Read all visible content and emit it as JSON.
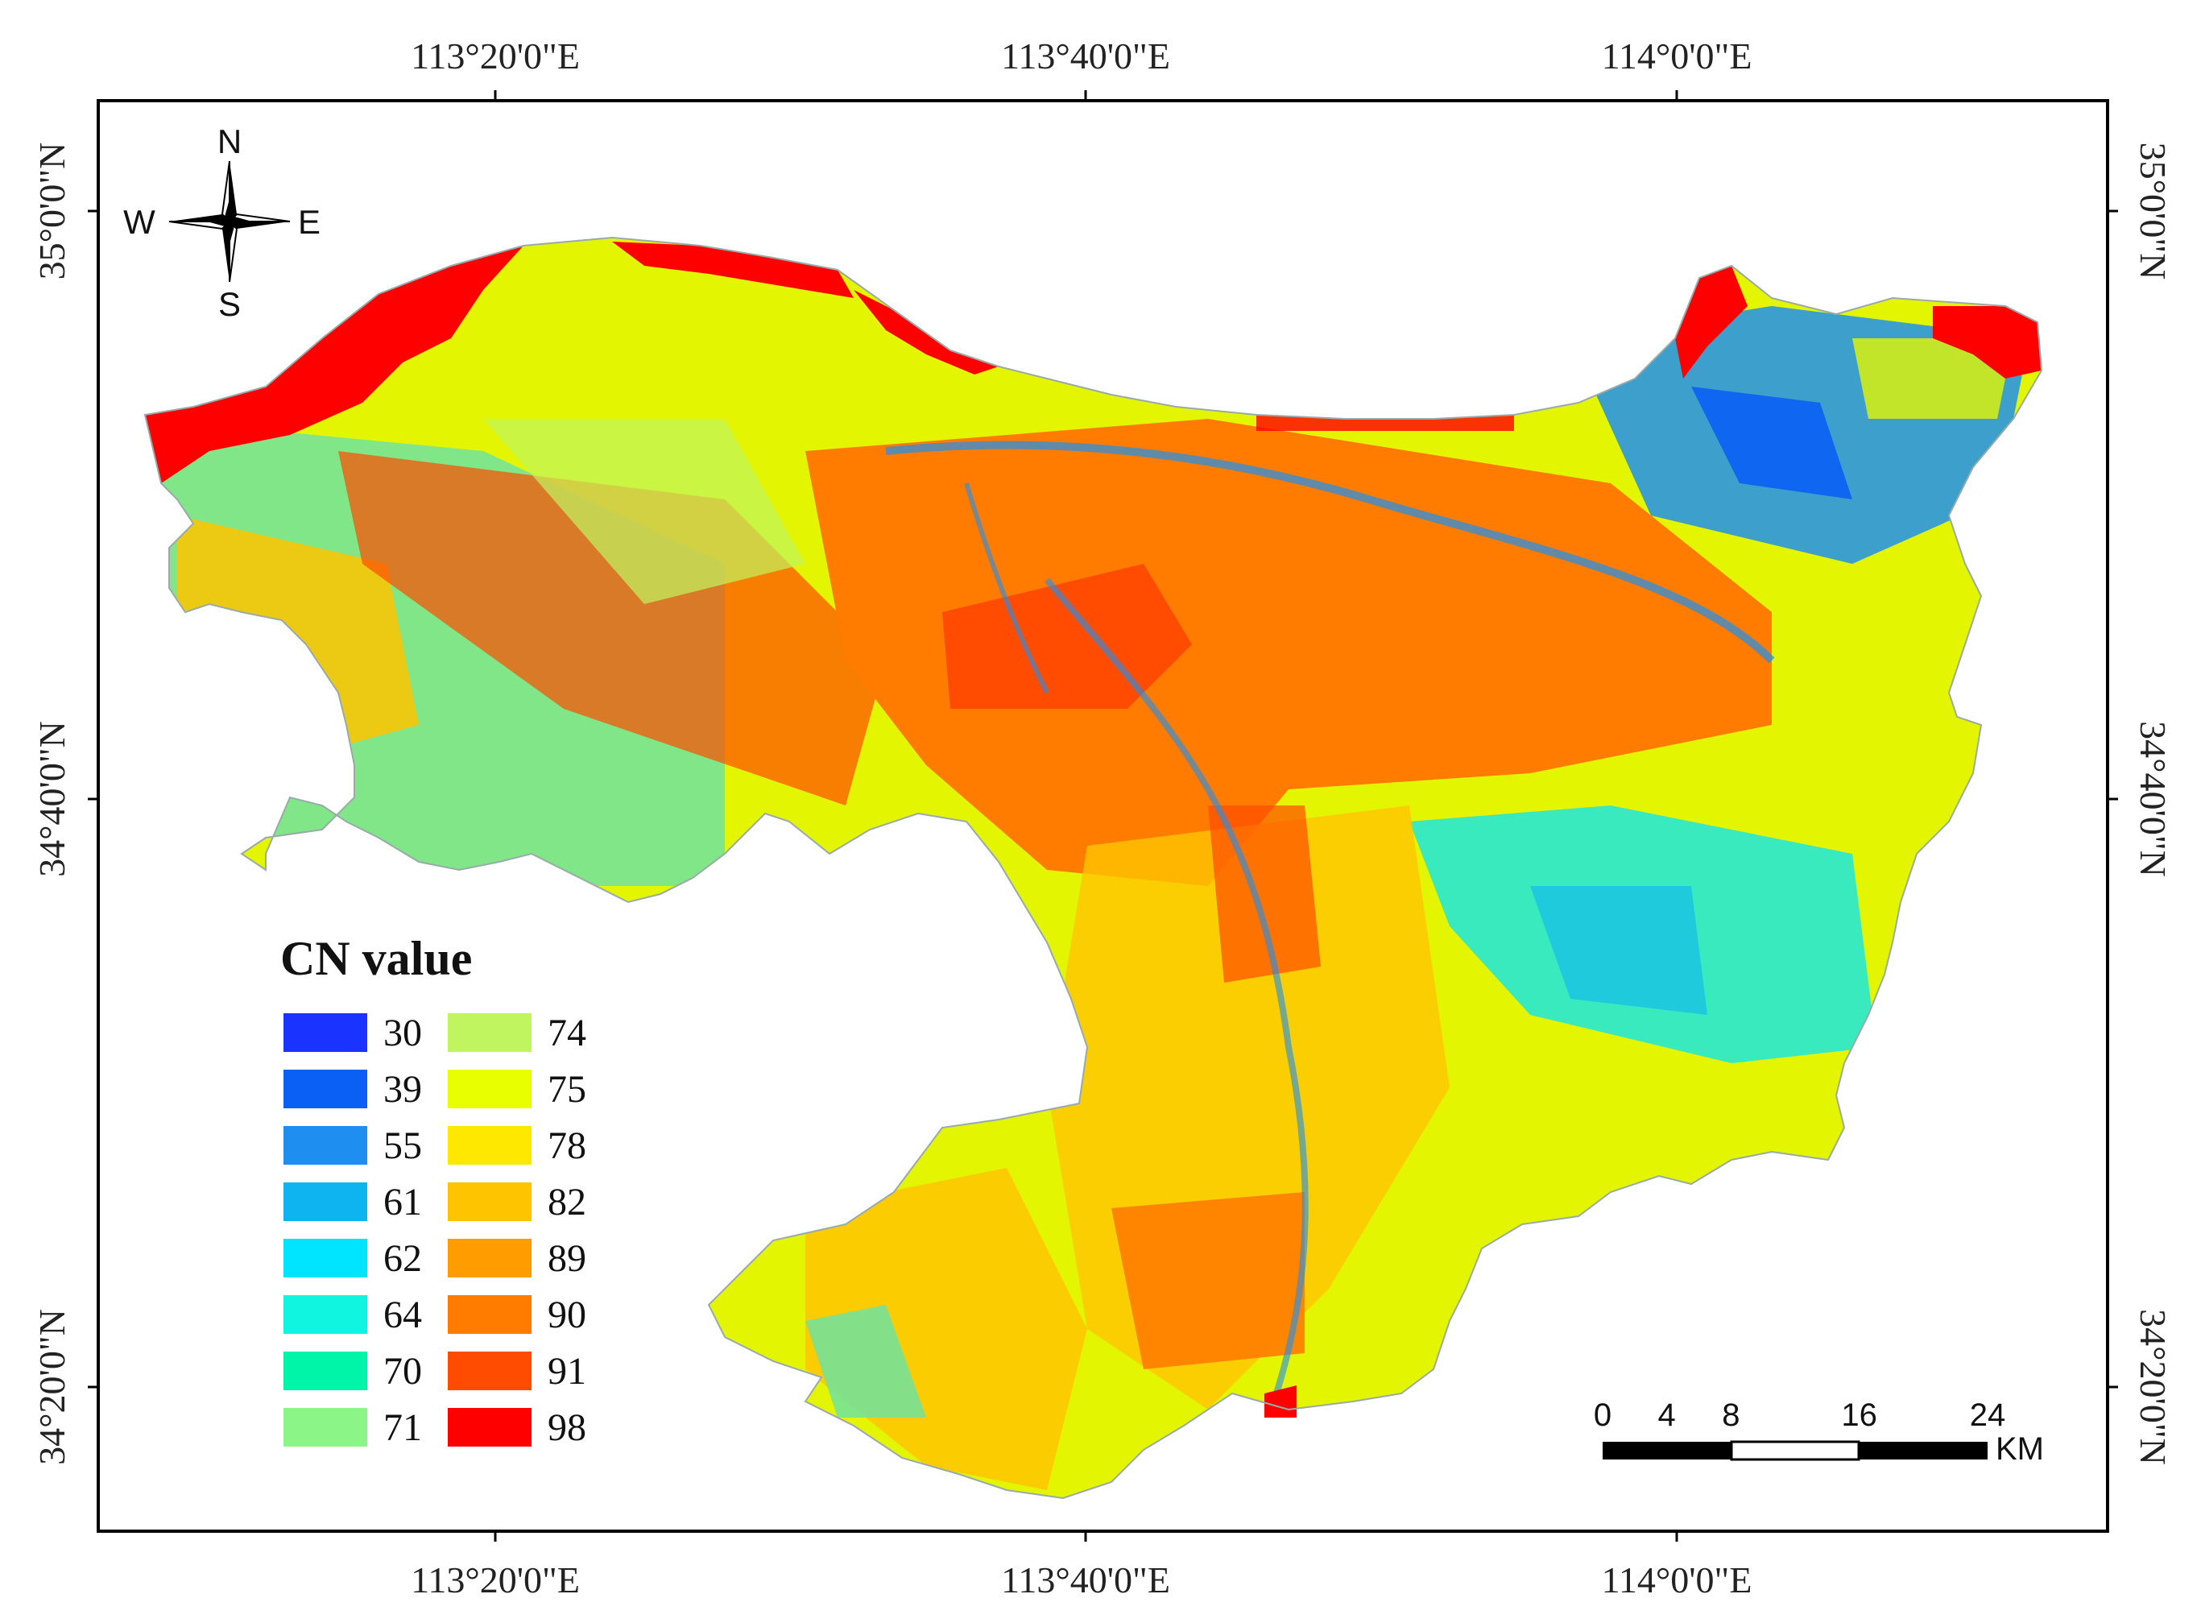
{
  "map": {
    "grid_labels": {
      "top": [
        "113°20'0\"E",
        "113°40'0\"E",
        "114°0'0\"E"
      ],
      "bottom": [
        "113°20'0\"E",
        "113°40'0\"E",
        "114°0'0\"E"
      ],
      "left": [
        "35°0'0\"N",
        "34°40'0\"N",
        "34°20'0\"N"
      ],
      "right": [
        "35°0'0\"N",
        "34°40'0\"N",
        "34°20'0\"N"
      ]
    },
    "north_arrow": {
      "n": "N",
      "s": "S",
      "e": "E",
      "w": "W"
    },
    "legend": {
      "title": "CN value",
      "items": [
        {
          "label": "30",
          "color": "#1a33ff"
        },
        {
          "label": "39",
          "color": "#0a5ff5"
        },
        {
          "label": "55",
          "color": "#1e8ff0"
        },
        {
          "label": "61",
          "color": "#0db4f0"
        },
        {
          "label": "62",
          "color": "#00e5ff"
        },
        {
          "label": "64",
          "color": "#10f5e0"
        },
        {
          "label": "70",
          "color": "#00f5a8"
        },
        {
          "label": "71",
          "color": "#8cf588"
        },
        {
          "label": "74",
          "color": "#c0f560"
        },
        {
          "label": "75",
          "color": "#e8ff00"
        },
        {
          "label": "78",
          "color": "#ffe800"
        },
        {
          "label": "82",
          "color": "#ffc400"
        },
        {
          "label": "89",
          "color": "#ff9c00"
        },
        {
          "label": "90",
          "color": "#ff7c00"
        },
        {
          "label": "91",
          "color": "#ff4c00"
        },
        {
          "label": "98",
          "color": "#ff0000"
        }
      ]
    },
    "scale_bar": {
      "ticks": [
        "0",
        "4",
        "8",
        "16",
        "24"
      ],
      "unit": "KM"
    }
  }
}
